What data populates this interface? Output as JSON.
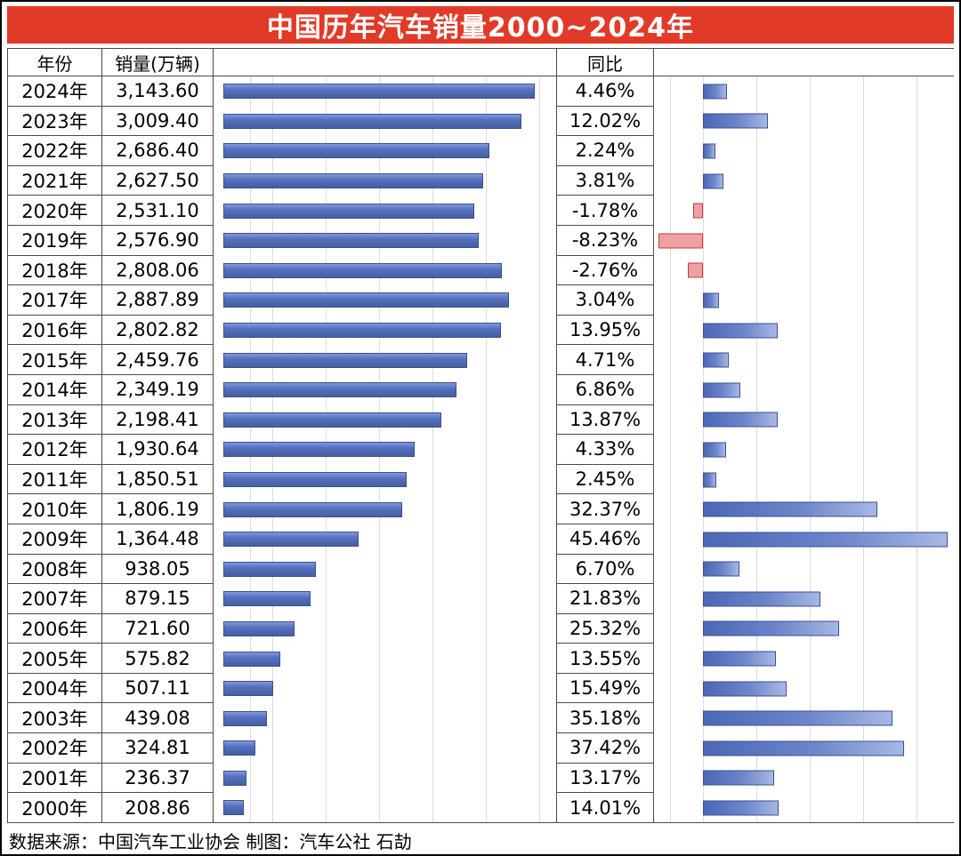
{
  "title": "中国历年汽车销量2000~2024年",
  "header": {
    "year": "年份",
    "sales": "销量(万辆)",
    "yoy": "同比"
  },
  "footer": "数据来源：中国汽车工业协会   制图：汽车公社 石劼",
  "colors": {
    "title_bg": "#E23A28",
    "bar_blue": "#4E6ABE",
    "bar_blue_light": "#A7B8E4",
    "bar_negative_fill": "#EDA2A2",
    "bar_negative_border": "#C83B3B",
    "grid_line": "#DCDCDC",
    "table_border": "#4A4A4A"
  },
  "chart_data": {
    "type": "bar",
    "title": "中国历年汽车销量2000~2024年",
    "categories": [
      "2024年",
      "2023年",
      "2022年",
      "2021年",
      "2020年",
      "2019年",
      "2018年",
      "2017年",
      "2016年",
      "2015年",
      "2014年",
      "2013年",
      "2012年",
      "2011年",
      "2010年",
      "2009年",
      "2008年",
      "2007年",
      "2006年",
      "2005年",
      "2004年",
      "2003年",
      "2002年",
      "2001年",
      "2000年"
    ],
    "series": [
      {
        "name": "销量(万辆)",
        "values": [
          3143.6,
          3009.4,
          2686.4,
          2627.5,
          2531.1,
          2576.9,
          2808.06,
          2887.89,
          2802.82,
          2459.76,
          2349.19,
          2198.41,
          1930.64,
          1850.51,
          1806.19,
          1364.48,
          938.05,
          879.15,
          721.6,
          575.82,
          507.11,
          439.08,
          324.81,
          236.37,
          208.86
        ]
      },
      {
        "name": "同比",
        "values": [
          4.46,
          12.02,
          2.24,
          3.81,
          -1.78,
          -8.23,
          -2.76,
          3.04,
          13.95,
          4.71,
          6.86,
          13.87,
          4.33,
          2.45,
          32.37,
          45.46,
          6.7,
          21.83,
          25.32,
          13.55,
          15.49,
          35.18,
          37.42,
          13.17,
          14.01
        ]
      }
    ],
    "sales_axis": [
      0,
      3500
    ],
    "yoy_axis": [
      -10,
      46
    ],
    "grid": true,
    "legend_position": "none",
    "orientation": "horizontal"
  },
  "rows": [
    {
      "year": "2024年",
      "sales": "3,143.60",
      "sales_value": 3143.6,
      "yoy": "4.46%",
      "yoy_value": 4.46
    },
    {
      "year": "2023年",
      "sales": "3,009.40",
      "sales_value": 3009.4,
      "yoy": "12.02%",
      "yoy_value": 12.02
    },
    {
      "year": "2022年",
      "sales": "2,686.40",
      "sales_value": 2686.4,
      "yoy": "2.24%",
      "yoy_value": 2.24
    },
    {
      "year": "2021年",
      "sales": "2,627.50",
      "sales_value": 2627.5,
      "yoy": "3.81%",
      "yoy_value": 3.81
    },
    {
      "year": "2020年",
      "sales": "2,531.10",
      "sales_value": 2531.1,
      "yoy": "-1.78%",
      "yoy_value": -1.78
    },
    {
      "year": "2019年",
      "sales": "2,576.90",
      "sales_value": 2576.9,
      "yoy": "-8.23%",
      "yoy_value": -8.23
    },
    {
      "year": "2018年",
      "sales": "2,808.06",
      "sales_value": 2808.06,
      "yoy": "-2.76%",
      "yoy_value": -2.76
    },
    {
      "year": "2017年",
      "sales": "2,887.89",
      "sales_value": 2887.89,
      "yoy": "3.04%",
      "yoy_value": 3.04
    },
    {
      "year": "2016年",
      "sales": "2,802.82",
      "sales_value": 2802.82,
      "yoy": "13.95%",
      "yoy_value": 13.95
    },
    {
      "year": "2015年",
      "sales": "2,459.76",
      "sales_value": 2459.76,
      "yoy": "4.71%",
      "yoy_value": 4.71
    },
    {
      "year": "2014年",
      "sales": "2,349.19",
      "sales_value": 2349.19,
      "yoy": "6.86%",
      "yoy_value": 6.86
    },
    {
      "year": "2013年",
      "sales": "2,198.41",
      "sales_value": 2198.41,
      "yoy": "13.87%",
      "yoy_value": 13.87
    },
    {
      "year": "2012年",
      "sales": "1,930.64",
      "sales_value": 1930.64,
      "yoy": "4.33%",
      "yoy_value": 4.33
    },
    {
      "year": "2011年",
      "sales": "1,850.51",
      "sales_value": 1850.51,
      "yoy": "2.45%",
      "yoy_value": 2.45
    },
    {
      "year": "2010年",
      "sales": "1,806.19",
      "sales_value": 1806.19,
      "yoy": "32.37%",
      "yoy_value": 32.37
    },
    {
      "year": "2009年",
      "sales": "1,364.48",
      "sales_value": 1364.48,
      "yoy": "45.46%",
      "yoy_value": 45.46
    },
    {
      "year": "2008年",
      "sales": "938.05",
      "sales_value": 938.05,
      "yoy": "6.70%",
      "yoy_value": 6.7
    },
    {
      "year": "2007年",
      "sales": "879.15",
      "sales_value": 879.15,
      "yoy": "21.83%",
      "yoy_value": 21.83
    },
    {
      "year": "2006年",
      "sales": "721.60",
      "sales_value": 721.6,
      "yoy": "25.32%",
      "yoy_value": 25.32
    },
    {
      "year": "2005年",
      "sales": "575.82",
      "sales_value": 575.82,
      "yoy": "13.55%",
      "yoy_value": 13.55
    },
    {
      "year": "2004年",
      "sales": "507.11",
      "sales_value": 507.11,
      "yoy": "15.49%",
      "yoy_value": 15.49
    },
    {
      "year": "2003年",
      "sales": "439.08",
      "sales_value": 439.08,
      "yoy": "35.18%",
      "yoy_value": 35.18
    },
    {
      "year": "2002年",
      "sales": "324.81",
      "sales_value": 324.81,
      "yoy": "37.42%",
      "yoy_value": 37.42
    },
    {
      "year": "2001年",
      "sales": "236.37",
      "sales_value": 236.37,
      "yoy": "13.17%",
      "yoy_value": 13.17
    },
    {
      "year": "2000年",
      "sales": "208.86",
      "sales_value": 208.86,
      "yoy": "14.01%",
      "yoy_value": 14.01
    }
  ]
}
